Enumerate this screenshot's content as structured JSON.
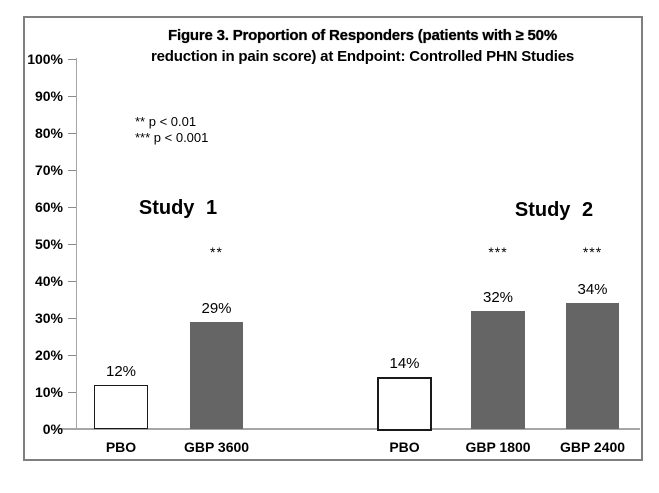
{
  "figure": {
    "title_line1": "Figure 3. Proportion of Responders (patients with ≥ 50%",
    "title_line2": "reduction in pain score) at Endpoint: Controlled PHN Studies",
    "legend_sig2": "** p < 0.01",
    "legend_sig3": "*** p < 0.001"
  },
  "chart_data": {
    "type": "bar",
    "title": "Figure 3. Proportion of Responders (patients with ≥ 50% reduction in pain score) at Endpoint: Controlled PHN Studies",
    "xlabel": "",
    "ylabel": "",
    "ylim": [
      0,
      100
    ],
    "ytick_step": 10,
    "ytick_labels": [
      "100%",
      "90%",
      "80%",
      "70%",
      "60%",
      "50%",
      "40%",
      "30%",
      "20%",
      "10%",
      "0%"
    ],
    "grid": false,
    "legend": {
      "position": "upper-left",
      "entries": [
        "** p < 0.01",
        "*** p < 0.001"
      ]
    },
    "groups": [
      {
        "label": "Study 1",
        "bars": [
          {
            "category": "PBO",
            "value": 12,
            "value_label": "12%",
            "style": "outlined-white",
            "significance": ""
          },
          {
            "category": "GBP 3600",
            "value": 29,
            "value_label": "29%",
            "style": "filled-gray",
            "significance": "**"
          }
        ]
      },
      {
        "label": "Study 2",
        "bars": [
          {
            "category": "PBO",
            "value": 14,
            "value_label": "14%",
            "style": "outlined-white",
            "significance": ""
          },
          {
            "category": "GBP 1800",
            "value": 32,
            "value_label": "32%",
            "style": "filled-gray",
            "significance": "***"
          },
          {
            "category": "GBP 2400",
            "value": 34,
            "value_label": "34%",
            "style": "filled-gray",
            "significance": "***"
          }
        ]
      }
    ]
  },
  "colors": {
    "bar_fill_gray": "#656565",
    "bar_outline_black": "#1a1a1a",
    "axis_line": "#a6a6a6",
    "frame_border": "#7f7f7f",
    "text": "#000000",
    "background": "#ffffff"
  }
}
